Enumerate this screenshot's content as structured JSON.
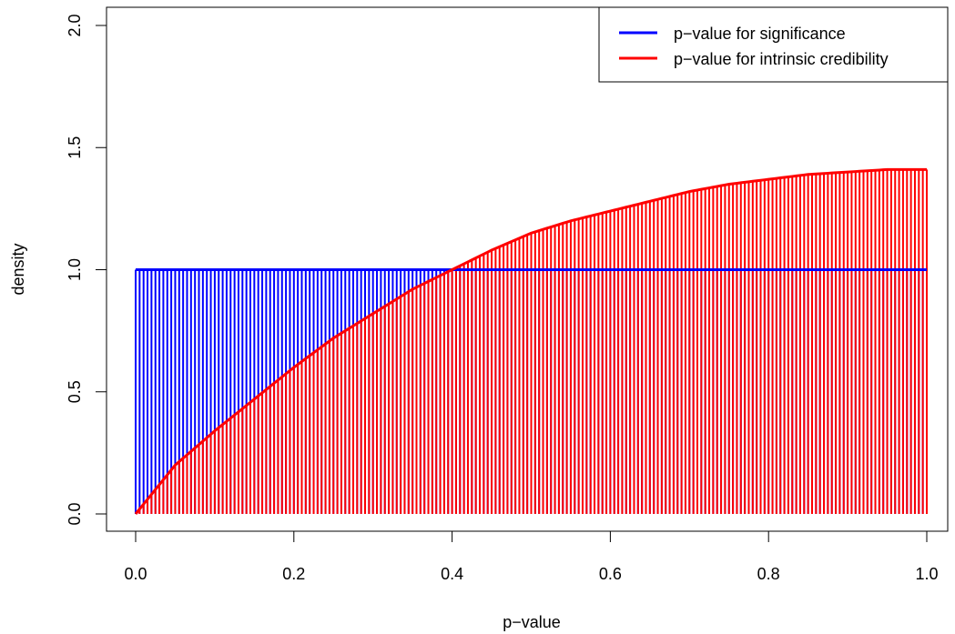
{
  "chart_data": {
    "type": "area",
    "title": "",
    "xlabel": "p−value",
    "ylabel": "density",
    "xlim": [
      0,
      1
    ],
    "ylim": [
      0,
      2
    ],
    "x_ticks": [
      0.0,
      0.2,
      0.4,
      0.6,
      0.8,
      1.0
    ],
    "x_tick_labels": [
      "0.0",
      "0.2",
      "0.4",
      "0.6",
      "0.8",
      "1.0"
    ],
    "y_ticks": [
      0.0,
      0.5,
      1.0,
      1.5,
      2.0
    ],
    "y_tick_labels": [
      "0.0",
      "0.5",
      "1.0",
      "1.5",
      "2.0"
    ],
    "grid": false,
    "legend_position": "top-right",
    "series": [
      {
        "name": "p−value for significance",
        "color": "#0000ff",
        "x": [
          0.0,
          0.1,
          0.2,
          0.3,
          0.4,
          0.5,
          0.6,
          0.7,
          0.8,
          0.9,
          1.0
        ],
        "y": [
          1.0,
          1.0,
          1.0,
          1.0,
          1.0,
          1.0,
          1.0,
          1.0,
          1.0,
          1.0,
          1.0
        ]
      },
      {
        "name": "p−value for intrinsic credibility",
        "color": "#ff0000",
        "x": [
          0.0,
          0.05,
          0.1,
          0.15,
          0.2,
          0.25,
          0.3,
          0.35,
          0.4,
          0.45,
          0.5,
          0.55,
          0.6,
          0.65,
          0.7,
          0.75,
          0.8,
          0.85,
          0.9,
          0.95,
          1.0
        ],
        "y": [
          0.0,
          0.2,
          0.34,
          0.47,
          0.6,
          0.72,
          0.82,
          0.92,
          1.0,
          1.08,
          1.15,
          1.2,
          1.24,
          1.28,
          1.32,
          1.35,
          1.37,
          1.39,
          1.4,
          1.41,
          1.41
        ]
      }
    ]
  }
}
